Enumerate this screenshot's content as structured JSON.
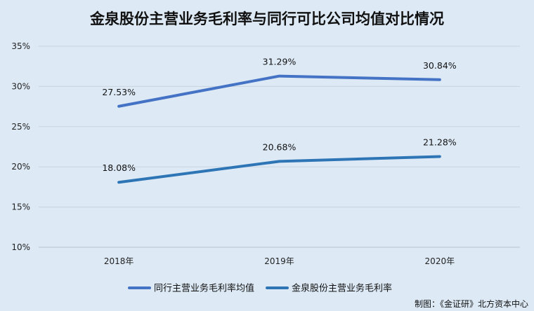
{
  "chart_data": {
    "type": "line",
    "title": "金泉股份主营业务毛利率与同行可比公司均值对比情况",
    "categories": [
      "2018年",
      "2019年",
      "2020年"
    ],
    "ylim": [
      10,
      35
    ],
    "y_ticks": [
      "10%",
      "15%",
      "20%",
      "25%",
      "30%",
      "35%"
    ],
    "y_tick_values": [
      10,
      15,
      20,
      25,
      30,
      35
    ],
    "grid": true,
    "legend_position": "bottom",
    "series": [
      {
        "name": "同行主营业务毛利率均值",
        "values": [
          27.53,
          31.29,
          30.84
        ],
        "labels": [
          "27.53%",
          "31.29%",
          "30.84%"
        ],
        "color": "#4472c4"
      },
      {
        "name": "金泉股份主营业务毛利率",
        "values": [
          18.08,
          20.68,
          21.28
        ],
        "labels": [
          "18.08%",
          "20.68%",
          "21.28%"
        ],
        "color": "#2e75b6"
      }
    ]
  },
  "source_note": "制图：《金证研》北方资本中心"
}
